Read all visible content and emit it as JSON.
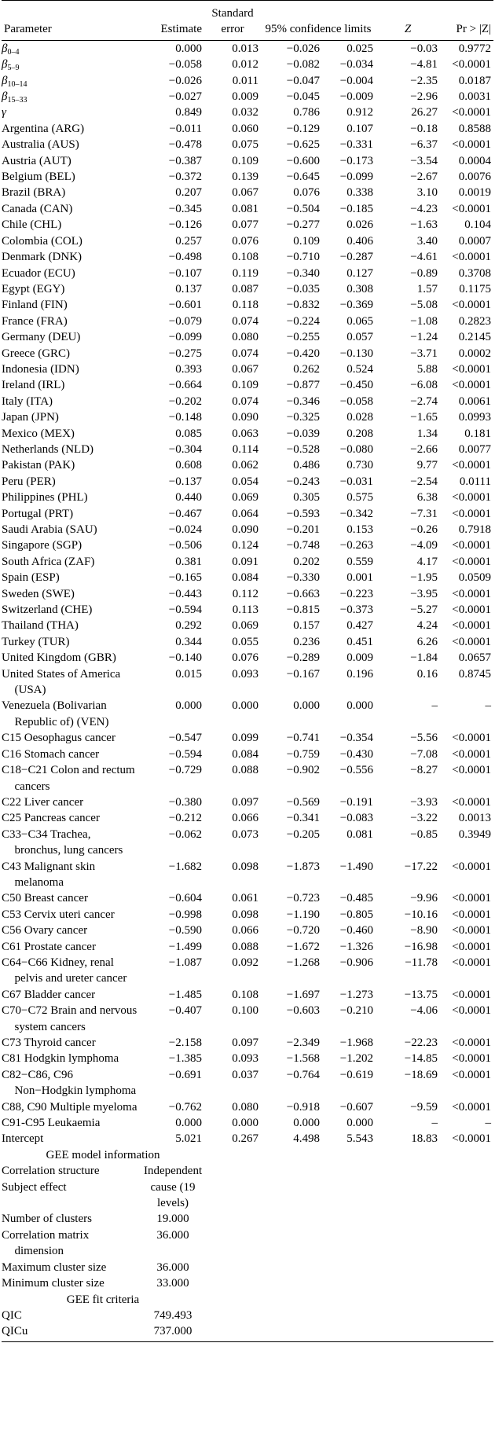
{
  "header": {
    "parameter": "Parameter",
    "estimate": "Estimate",
    "standard_error": "Standard error",
    "confidence_limits": "95% confidence limits",
    "z": "Z",
    "p": "Pr > |Z|"
  },
  "rows": [
    [
      {
        "text": "β",
        "sub": "0–4"
      },
      "0.000",
      "0.013",
      "−0.026",
      "0.025",
      "−0.03",
      "0.9772"
    ],
    [
      {
        "text": "β",
        "sub": "5–9"
      },
      "−0.058",
      "0.012",
      "−0.082",
      "−0.034",
      "−4.81",
      "<0.0001"
    ],
    [
      {
        "text": "β",
        "sub": "10–14"
      },
      "−0.026",
      "0.011",
      "−0.047",
      "−0.004",
      "−2.35",
      "0.0187"
    ],
    [
      {
        "text": "β",
        "sub": "15–33"
      },
      "−0.027",
      "0.009",
      "−0.045",
      "−0.009",
      "−2.96",
      "0.0031"
    ],
    [
      {
        "text": "γ"
      },
      "0.849",
      "0.032",
      "0.786",
      "0.912",
      "26.27",
      "<0.0001"
    ],
    [
      "Argentina (ARG)",
      "−0.011",
      "0.060",
      "−0.129",
      "0.107",
      "−0.18",
      "0.8588"
    ],
    [
      "Australia (AUS)",
      "−0.478",
      "0.075",
      "−0.625",
      "−0.331",
      "−6.37",
      "<0.0001"
    ],
    [
      "Austria (AUT)",
      "−0.387",
      "0.109",
      "−0.600",
      "−0.173",
      "−3.54",
      "0.0004"
    ],
    [
      "Belgium (BEL)",
      "−0.372",
      "0.139",
      "−0.645",
      "−0.099",
      "−2.67",
      "0.0076"
    ],
    [
      "Brazil (BRA)",
      "0.207",
      "0.067",
      "0.076",
      "0.338",
      "3.10",
      "0.0019"
    ],
    [
      "Canada (CAN)",
      "−0.345",
      "0.081",
      "−0.504",
      "−0.185",
      "−4.23",
      "<0.0001"
    ],
    [
      "Chile (CHL)",
      "−0.126",
      "0.077",
      "−0.277",
      "0.026",
      "−1.63",
      "0.104"
    ],
    [
      "Colombia (COL)",
      "0.257",
      "0.076",
      "0.109",
      "0.406",
      "3.40",
      "0.0007"
    ],
    [
      "Denmark (DNK)",
      "−0.498",
      "0.108",
      "−0.710",
      "−0.287",
      "−4.61",
      "<0.0001"
    ],
    [
      "Ecuador (ECU)",
      "−0.107",
      "0.119",
      "−0.340",
      "0.127",
      "−0.89",
      "0.3708"
    ],
    [
      "Egypt (EGY)",
      "0.137",
      "0.087",
      "−0.035",
      "0.308",
      "1.57",
      "0.1175"
    ],
    [
      "Finland (FIN)",
      "−0.601",
      "0.118",
      "−0.832",
      "−0.369",
      "−5.08",
      "<0.0001"
    ],
    [
      "France (FRA)",
      "−0.079",
      "0.074",
      "−0.224",
      "0.065",
      "−1.08",
      "0.2823"
    ],
    [
      "Germany (DEU)",
      "−0.099",
      "0.080",
      "−0.255",
      "0.057",
      "−1.24",
      "0.2145"
    ],
    [
      "Greece (GRC)",
      "−0.275",
      "0.074",
      "−0.420",
      "−0.130",
      "−3.71",
      "0.0002"
    ],
    [
      "Indonesia (IDN)",
      "0.393",
      "0.067",
      "0.262",
      "0.524",
      "5.88",
      "<0.0001"
    ],
    [
      "Ireland (IRL)",
      "−0.664",
      "0.109",
      "−0.877",
      "−0.450",
      "−6.08",
      "<0.0001"
    ],
    [
      "Italy (ITA)",
      "−0.202",
      "0.074",
      "−0.346",
      "−0.058",
      "−2.74",
      "0.0061"
    ],
    [
      "Japan (JPN)",
      "−0.148",
      "0.090",
      "−0.325",
      "0.028",
      "−1.65",
      "0.0993"
    ],
    [
      "Mexico (MEX)",
      "0.085",
      "0.063",
      "−0.039",
      "0.208",
      "1.34",
      "0.181"
    ],
    [
      "Netherlands (NLD)",
      "−0.304",
      "0.114",
      "−0.528",
      "−0.080",
      "−2.66",
      "0.0077"
    ],
    [
      "Pakistan (PAK)",
      "0.608",
      "0.062",
      "0.486",
      "0.730",
      "9.77",
      "<0.0001"
    ],
    [
      "Peru (PER)",
      "−0.137",
      "0.054",
      "−0.243",
      "−0.031",
      "−2.54",
      "0.0111"
    ],
    [
      "Philippines (PHL)",
      "0.440",
      "0.069",
      "0.305",
      "0.575",
      "6.38",
      "<0.0001"
    ],
    [
      "Portugal (PRT)",
      "−0.467",
      "0.064",
      "−0.593",
      "−0.342",
      "−7.31",
      "<0.0001"
    ],
    [
      "Saudi Arabia (SAU)",
      "−0.024",
      "0.090",
      "−0.201",
      "0.153",
      "−0.26",
      "0.7918"
    ],
    [
      "Singapore (SGP)",
      "−0.506",
      "0.124",
      "−0.748",
      "−0.263",
      "−4.09",
      "<0.0001"
    ],
    [
      "South Africa (ZAF)",
      "0.381",
      "0.091",
      "0.202",
      "0.559",
      "4.17",
      "<0.0001"
    ],
    [
      "Spain (ESP)",
      "−0.165",
      "0.084",
      "−0.330",
      "0.001",
      "−1.95",
      "0.0509"
    ],
    [
      "Sweden (SWE)",
      "−0.443",
      "0.112",
      "−0.663",
      "−0.223",
      "−3.95",
      "<0.0001"
    ],
    [
      "Switzerland (CHE)",
      "−0.594",
      "0.113",
      "−0.815",
      "−0.373",
      "−5.27",
      "<0.0001"
    ],
    [
      "Thailand (THA)",
      "0.292",
      "0.069",
      "0.157",
      "0.427",
      "4.24",
      "<0.0001"
    ],
    [
      "Turkey (TUR)",
      "0.344",
      "0.055",
      "0.236",
      "0.451",
      "6.26",
      "<0.0001"
    ],
    [
      "United Kingdom (GBR)",
      "−0.140",
      "0.076",
      "−0.289",
      "0.009",
      "−1.84",
      "0.0657"
    ],
    [
      "United States of America (USA)",
      "0.015",
      "0.093",
      "−0.167",
      "0.196",
      "0.16",
      "0.8745"
    ],
    [
      "Venezuela (Bolivarian Republic of) (VEN)",
      "0.000",
      "0.000",
      "0.000",
      "0.000",
      "–",
      "–"
    ],
    [
      "C15 Oesophagus cancer",
      "−0.547",
      "0.099",
      "−0.741",
      "−0.354",
      "−5.56",
      "<0.0001"
    ],
    [
      "C16 Stomach cancer",
      "−0.594",
      "0.084",
      "−0.759",
      "−0.430",
      "−7.08",
      "<0.0001"
    ],
    [
      "C18−C21 Colon and rectum cancers",
      "−0.729",
      "0.088",
      "−0.902",
      "−0.556",
      "−8.27",
      "<0.0001"
    ],
    [
      "C22 Liver cancer",
      "−0.380",
      "0.097",
      "−0.569",
      "−0.191",
      "−3.93",
      "<0.0001"
    ],
    [
      "C25 Pancreas cancer",
      "−0.212",
      "0.066",
      "−0.341",
      "−0.083",
      "−3.22",
      "0.0013"
    ],
    [
      "C33−C34 Trachea, bronchus, lung cancers",
      "−0.062",
      "0.073",
      "−0.205",
      "0.081",
      "−0.85",
      "0.3949"
    ],
    [
      "C43 Malignant skin melanoma",
      "−1.682",
      "0.098",
      "−1.873",
      "−1.490",
      "−17.22",
      "<0.0001"
    ],
    [
      "C50 Breast cancer",
      "−0.604",
      "0.061",
      "−0.723",
      "−0.485",
      "−9.96",
      "<0.0001"
    ],
    [
      "C53 Cervix uteri cancer",
      "−0.998",
      "0.098",
      "−1.190",
      "−0.805",
      "−10.16",
      "<0.0001"
    ],
    [
      "C56 Ovary cancer",
      "−0.590",
      "0.066",
      "−0.720",
      "−0.460",
      "−8.90",
      "<0.0001"
    ],
    [
      "C61 Prostate cancer",
      "−1.499",
      "0.088",
      "−1.672",
      "−1.326",
      "−16.98",
      "<0.0001"
    ],
    [
      "C64−C66 Kidney, renal pelvis and ureter cancer",
      "−1.087",
      "0.092",
      "−1.268",
      "−0.906",
      "−11.78",
      "<0.0001"
    ],
    [
      "C67 Bladder cancer",
      "−1.485",
      "0.108",
      "−1.697",
      "−1.273",
      "−13.75",
      "<0.0001"
    ],
    [
      "C70−C72 Brain and nervous system cancers",
      "−0.407",
      "0.100",
      "−0.603",
      "−0.210",
      "−4.06",
      "<0.0001"
    ],
    [
      "C73 Thyroid cancer",
      "−2.158",
      "0.097",
      "−2.349",
      "−1.968",
      "−22.23",
      "<0.0001"
    ],
    [
      "C81 Hodgkin lymphoma",
      "−1.385",
      "0.093",
      "−1.568",
      "−1.202",
      "−14.85",
      "<0.0001"
    ],
    [
      "C82−C86, C96 Non−Hodgkin lymphoma",
      "−0.691",
      "0.037",
      "−0.764",
      "−0.619",
      "−18.69",
      "<0.0001"
    ],
    [
      "C88, C90 Multiple myeloma",
      "−0.762",
      "0.080",
      "−0.918",
      "−0.607",
      "−9.59",
      "<0.0001"
    ],
    [
      "C91-C95 Leukaemia",
      "0.000",
      "0.000",
      "0.000",
      "0.000",
      "–",
      "–"
    ],
    [
      "Intercept",
      "5.021",
      "0.267",
      "4.498",
      "5.543",
      "18.83",
      "<0.0001"
    ]
  ],
  "model_info": {
    "title": "GEE model information",
    "rows": [
      [
        "Correlation structure",
        "Independent"
      ],
      [
        "Subject effect",
        "cause (19 levels)"
      ],
      [
        "Number of clusters",
        "19.000"
      ],
      [
        "Correlation matrix dimension",
        "36.000"
      ],
      [
        "Maximum cluster size",
        "36.000"
      ],
      [
        "Minimum cluster size",
        "33.000"
      ]
    ]
  },
  "fit_criteria": {
    "title": "GEE fit criteria",
    "rows": [
      [
        "QIC",
        "749.493"
      ],
      [
        "QICu",
        "737.000"
      ]
    ]
  }
}
